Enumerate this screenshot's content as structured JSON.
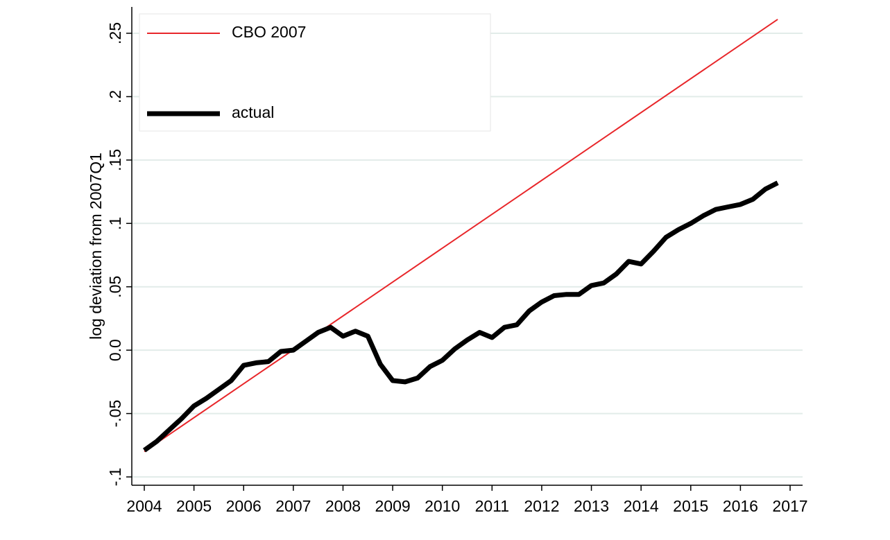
{
  "chart_data": {
    "type": "line",
    "title": "",
    "xlabel": "",
    "ylabel": "log deviation from 2007Q1",
    "xlim": [
      2004,
      2017
    ],
    "ylim": [
      -0.1,
      0.25
    ],
    "x_ticks": [
      2004,
      2005,
      2006,
      2007,
      2008,
      2009,
      2010,
      2011,
      2012,
      2013,
      2014,
      2015,
      2016,
      2017
    ],
    "x_tick_labels": [
      "2004",
      "2005",
      "2006",
      "2007",
      "2008",
      "2009",
      "2010",
      "2011",
      "2012",
      "2013",
      "2014",
      "2015",
      "2016",
      "2017"
    ],
    "y_ticks": [
      -0.1,
      -0.05,
      0,
      0.05,
      0.1,
      0.15,
      0.2,
      0.25
    ],
    "y_tick_labels": [
      "-.1",
      "-.05",
      "0.0",
      ".05",
      ".1",
      ".15",
      ".2",
      ".25"
    ],
    "grid": true,
    "legend_position": "top-left",
    "series": [
      {
        "name": "CBO 2007",
        "color": "#e8262a",
        "style": "thin",
        "x": [
          2004.0,
          2016.75
        ],
        "y": [
          -0.08,
          0.261
        ]
      },
      {
        "name": "actual",
        "color": "#000000",
        "style": "thick",
        "x": [
          2004.0,
          2004.25,
          2004.5,
          2004.75,
          2005.0,
          2005.25,
          2005.5,
          2005.75,
          2006.0,
          2006.25,
          2006.5,
          2006.75,
          2007.0,
          2007.25,
          2007.5,
          2007.75,
          2008.0,
          2008.25,
          2008.5,
          2008.75,
          2009.0,
          2009.25,
          2009.5,
          2009.75,
          2010.0,
          2010.25,
          2010.5,
          2010.75,
          2011.0,
          2011.25,
          2011.5,
          2011.75,
          2012.0,
          2012.25,
          2012.5,
          2012.75,
          2013.0,
          2013.25,
          2013.5,
          2013.75,
          2014.0,
          2014.25,
          2014.5,
          2014.75,
          2015.0,
          2015.25,
          2015.5,
          2015.75,
          2016.0,
          2016.25,
          2016.5,
          2016.75
        ],
        "y": [
          -0.079,
          -0.072,
          -0.063,
          -0.054,
          -0.044,
          -0.038,
          -0.031,
          -0.024,
          -0.012,
          -0.01,
          -0.009,
          -0.001,
          0.0,
          0.007,
          0.014,
          0.018,
          0.011,
          0.015,
          0.011,
          -0.011,
          -0.024,
          -0.025,
          -0.022,
          -0.013,
          -0.008,
          0.001,
          0.008,
          0.014,
          0.01,
          0.018,
          0.02,
          0.031,
          0.038,
          0.043,
          0.044,
          0.044,
          0.051,
          0.053,
          0.06,
          0.07,
          0.068,
          0.078,
          0.089,
          0.095,
          0.1,
          0.106,
          0.111,
          0.113,
          0.115,
          0.119,
          0.127,
          0.132
        ]
      }
    ]
  }
}
